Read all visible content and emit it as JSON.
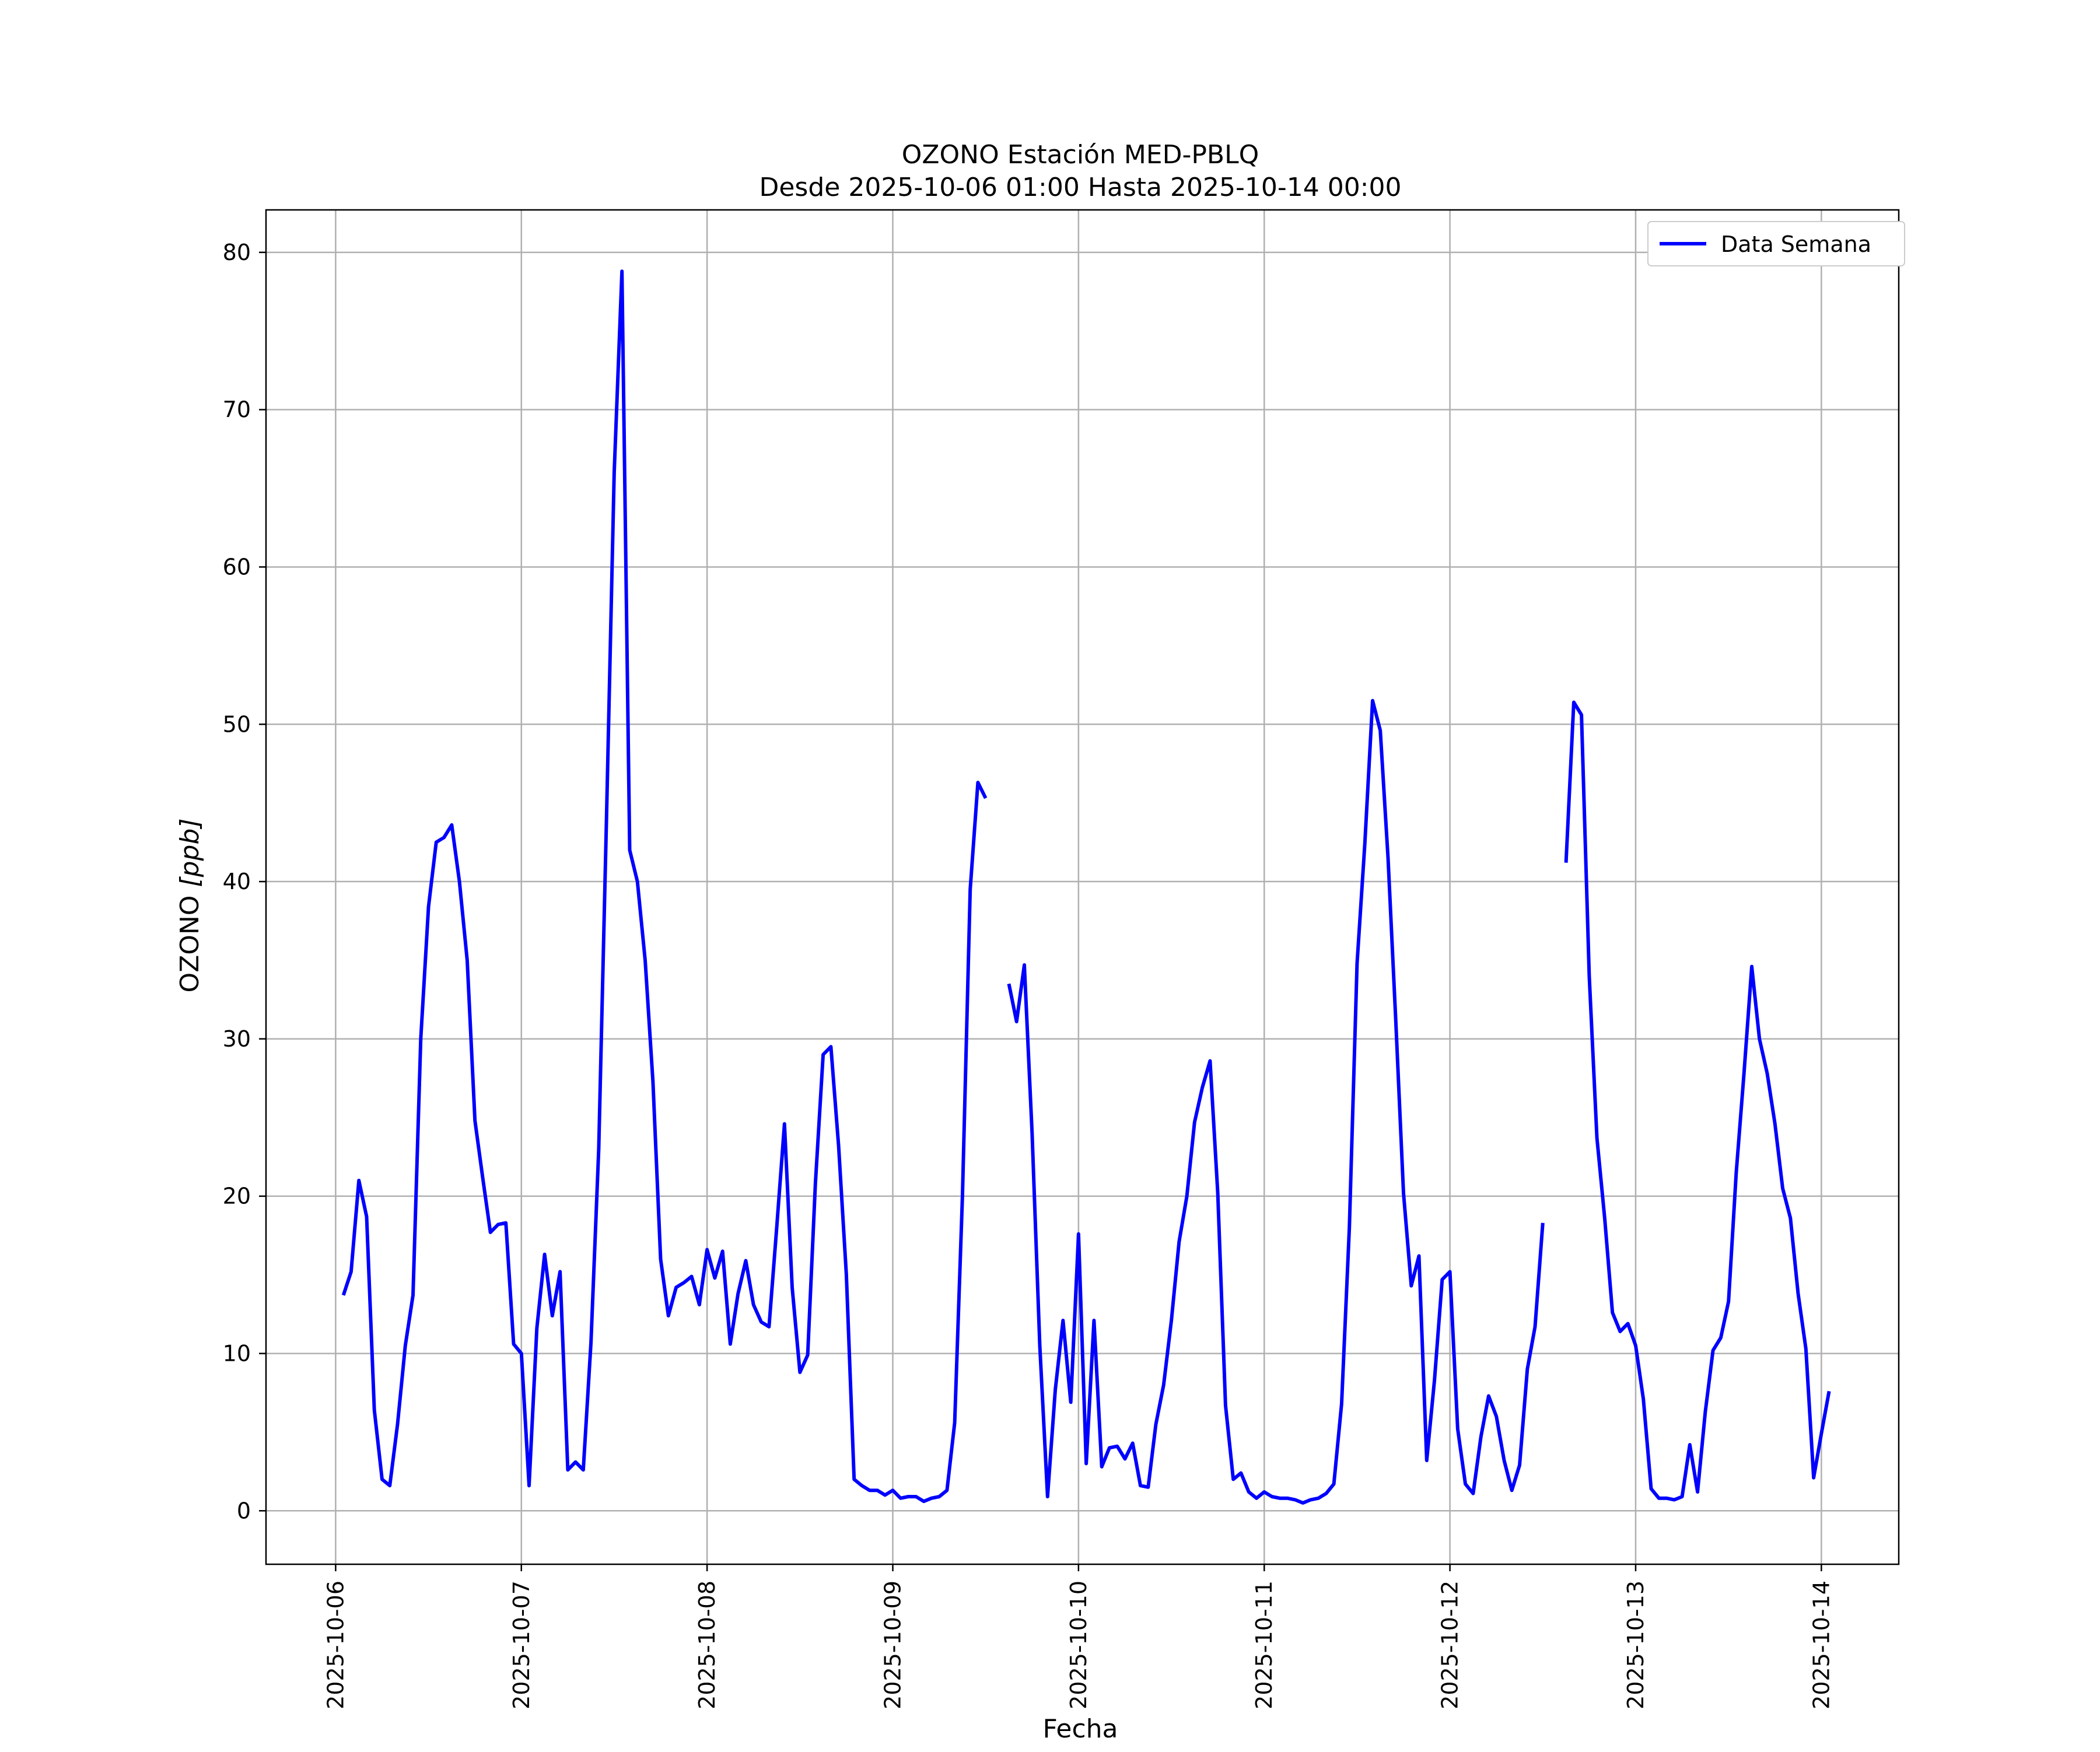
{
  "chart_data": {
    "type": "line",
    "title": "OZONO Estación MED-PBLQ",
    "subtitle": "Desde 2025-10-06 01:00 Hasta 2025-10-14 00:00",
    "xlabel": "Fecha",
    "ylabel": "OZONO [ppb]",
    "ylabel_main": "OZONO ",
    "ylabel_unit": "[ppb]",
    "xlim": [
      "2025-10-05 15:00",
      "2025-10-14 10:00"
    ],
    "ylim": [
      -3.4,
      82.7
    ],
    "x_ticks": [
      "2025-10-06",
      "2025-10-07",
      "2025-10-08",
      "2025-10-09",
      "2025-10-10",
      "2025-10-11",
      "2025-10-12",
      "2025-10-13",
      "2025-10-14"
    ],
    "y_ticks": [
      0,
      10,
      20,
      30,
      40,
      50,
      60,
      70,
      80
    ],
    "grid": true,
    "legend_placement": "top-right",
    "series": [
      {
        "name": "Data Semana",
        "color": "#0000ff",
        "start": "2025-10-06 01:00",
        "step_hours": 1,
        "values": [
          13.7,
          15.2,
          21.0,
          18.7,
          6.4,
          2.0,
          1.6,
          5.5,
          10.5,
          13.7,
          30.0,
          38.4,
          42.5,
          42.8,
          43.6,
          40.0,
          35.0,
          24.8,
          21.2,
          17.7,
          18.2,
          18.3,
          10.6,
          10.0,
          1.6,
          11.6,
          16.3,
          12.4,
          15.2,
          2.6,
          3.1,
          2.6,
          10.7,
          23.0,
          44.0,
          66.0,
          78.8,
          42.0,
          40.0,
          35.0,
          27.3,
          16.0,
          12.4,
          14.2,
          14.5,
          14.9,
          13.1,
          16.6,
          14.8,
          16.5,
          10.6,
          13.8,
          15.9,
          13.1,
          12.0,
          11.7,
          18.0,
          24.6,
          14.2,
          8.8,
          9.9,
          20.8,
          29.0,
          29.5,
          23.2,
          15.0,
          2.0,
          1.6,
          1.3,
          1.3,
          1.0,
          1.3,
          0.8,
          0.9,
          0.9,
          0.6,
          0.8,
          0.9,
          1.3,
          5.6,
          20.0,
          39.5,
          46.3,
          45.3,
          null,
          null,
          33.5,
          31.1,
          34.7,
          24.0,
          10.5,
          0.9,
          7.7,
          12.1,
          6.9,
          17.6,
          3.0,
          12.1,
          2.8,
          4.0,
          4.1,
          3.3,
          4.3,
          1.6,
          1.5,
          5.5,
          8.0,
          12.1,
          17.1,
          20.0,
          24.7,
          26.9,
          28.6,
          20.2,
          6.7,
          2.0,
          2.4,
          1.2,
          0.8,
          1.2,
          0.9,
          0.8,
          0.8,
          0.7,
          0.5,
          0.7,
          0.8,
          1.1,
          1.7,
          6.8,
          18.0,
          34.8,
          42.4,
          51.5,
          49.6,
          41.5,
          31.2,
          20.2,
          14.3,
          16.2,
          3.2,
          8.3,
          14.7,
          15.2,
          5.2,
          1.7,
          1.1,
          4.7,
          7.3,
          6.0,
          3.2,
          1.3,
          2.9,
          9.0,
          11.7,
          18.3,
          null,
          null,
          41.2,
          51.4,
          50.6,
          34.0,
          23.7,
          18.6,
          12.6,
          11.4,
          11.9,
          10.5,
          7.1,
          1.4,
          0.8,
          0.8,
          0.7,
          0.9,
          4.2,
          1.2,
          6.3,
          10.2,
          11.0,
          13.3,
          21.5,
          27.8,
          34.6,
          30.0,
          27.8,
          24.6,
          20.5,
          18.6,
          13.8,
          10.3,
          2.1,
          4.9,
          7.6
        ]
      }
    ]
  }
}
